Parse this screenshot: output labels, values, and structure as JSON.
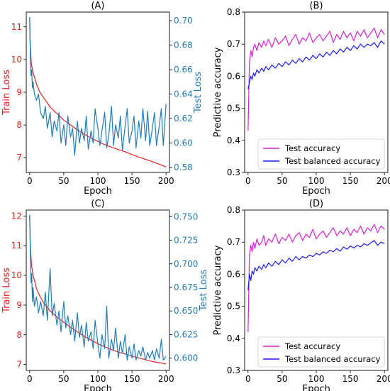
{
  "colors": {
    "train": "#e8211f",
    "test_loss": "#1f7db8",
    "accuracy": "#d81fd8",
    "balanced": "#1a1aff",
    "axis": "#000000"
  },
  "chart_data": [
    {
      "id": "A",
      "type": "line",
      "title": "(A)",
      "xlabel": "Epoch",
      "ylabel_left": "Train Loss",
      "ylabel_right": "Test Loss",
      "xlim": [
        -5,
        205
      ],
      "ylim_left": [
        6.55,
        11.45
      ],
      "ylim_right": [
        0.576,
        0.707
      ],
      "xticks": [
        0,
        50,
        100,
        150,
        200
      ],
      "yticks_left": [
        7,
        8,
        9,
        10,
        11
      ],
      "yticks_right": [
        0.58,
        0.6,
        0.62,
        0.64,
        0.66,
        0.68,
        0.7
      ],
      "right_tick_decimals": 2,
      "series": [
        {
          "axis": "left",
          "color_key": "train",
          "x": [
            0,
            1,
            2,
            3,
            5,
            8,
            10,
            15,
            20,
            25,
            30,
            40,
            50,
            60,
            70,
            80,
            90,
            100,
            110,
            120,
            130,
            140,
            150,
            160,
            170,
            180,
            190,
            200
          ],
          "values": [
            11.2,
            10.4,
            10.0,
            9.8,
            9.6,
            9.4,
            9.25,
            9.0,
            8.85,
            8.7,
            8.55,
            8.35,
            8.15,
            8.0,
            7.85,
            7.72,
            7.6,
            7.5,
            7.4,
            7.32,
            7.25,
            7.18,
            7.1,
            7.02,
            6.95,
            6.88,
            6.8,
            6.72
          ]
        },
        {
          "axis": "right",
          "color_key": "test_loss",
          "x": [
            0,
            1,
            2,
            3,
            4,
            5,
            7,
            10,
            13,
            16,
            20,
            23,
            26,
            30,
            33,
            36,
            40,
            43,
            46,
            50,
            53,
            56,
            60,
            63,
            66,
            70,
            73,
            76,
            80,
            83,
            86,
            90,
            93,
            96,
            100,
            103,
            106,
            110,
            113,
            116,
            120,
            123,
            126,
            130,
            133,
            136,
            140,
            143,
            146,
            150,
            153,
            156,
            160,
            163,
            166,
            170,
            173,
            176,
            180,
            183,
            186,
            190,
            193,
            196,
            200
          ],
          "values": [
            0.703,
            0.67,
            0.655,
            0.66,
            0.645,
            0.65,
            0.64,
            0.635,
            0.64,
            0.625,
            0.62,
            0.63,
            0.612,
            0.625,
            0.605,
            0.618,
            0.61,
            0.625,
            0.6,
            0.615,
            0.598,
            0.622,
            0.605,
            0.612,
            0.59,
            0.618,
            0.6,
            0.612,
            0.602,
            0.622,
            0.595,
            0.61,
            0.6,
            0.628,
            0.612,
            0.598,
            0.61,
            0.625,
            0.596,
            0.606,
            0.63,
            0.598,
            0.615,
            0.604,
            0.622,
            0.594,
            0.614,
            0.628,
            0.6,
            0.61,
            0.622,
            0.596,
            0.618,
            0.604,
            0.628,
            0.602,
            0.626,
            0.598,
            0.612,
            0.625,
            0.598,
            0.614,
            0.628,
            0.598,
            0.632
          ]
        }
      ]
    },
    {
      "id": "B",
      "type": "line",
      "title": "(B)",
      "xlabel": "Epoch",
      "ylabel_left": "Predictive accuracy",
      "xlim": [
        -5,
        205
      ],
      "ylim_left": [
        0.3,
        0.8
      ],
      "xticks": [
        0,
        50,
        100,
        150,
        200
      ],
      "yticks_left": [
        0.3,
        0.4,
        0.5,
        0.6,
        0.7,
        0.8
      ],
      "legend": {
        "position": "lower right",
        "entries": [
          "Test accuracy",
          "Test balanced accuracy"
        ]
      },
      "series": [
        {
          "axis": "left",
          "color_key": "accuracy",
          "name": "Test accuracy",
          "x": [
            0,
            2,
            4,
            6,
            8,
            10,
            13,
            16,
            20,
            23,
            26,
            30,
            35,
            40,
            45,
            50,
            55,
            60,
            65,
            70,
            75,
            80,
            85,
            90,
            95,
            100,
            105,
            110,
            115,
            120,
            125,
            130,
            135,
            140,
            145,
            150,
            155,
            160,
            165,
            170,
            175,
            180,
            185,
            190,
            195,
            200
          ],
          "values": [
            0.43,
            0.64,
            0.68,
            0.66,
            0.69,
            0.7,
            0.68,
            0.705,
            0.69,
            0.71,
            0.695,
            0.715,
            0.69,
            0.72,
            0.7,
            0.71,
            0.725,
            0.695,
            0.715,
            0.73,
            0.7,
            0.72,
            0.71,
            0.735,
            0.705,
            0.72,
            0.73,
            0.71,
            0.725,
            0.74,
            0.705,
            0.73,
            0.715,
            0.74,
            0.72,
            0.735,
            0.71,
            0.74,
            0.725,
            0.745,
            0.72,
            0.735,
            0.75,
            0.72,
            0.745,
            0.73
          ]
        },
        {
          "axis": "left",
          "color_key": "balanced",
          "name": "Test balanced accuracy",
          "x": [
            0,
            2,
            4,
            6,
            8,
            10,
            13,
            16,
            20,
            23,
            26,
            30,
            35,
            40,
            45,
            50,
            55,
            60,
            65,
            70,
            75,
            80,
            85,
            90,
            95,
            100,
            105,
            110,
            115,
            120,
            125,
            130,
            135,
            140,
            145,
            150,
            155,
            160,
            165,
            170,
            175,
            180,
            185,
            190,
            195,
            200
          ],
          "values": [
            0.56,
            0.58,
            0.6,
            0.59,
            0.61,
            0.6,
            0.62,
            0.61,
            0.625,
            0.615,
            0.63,
            0.62,
            0.635,
            0.625,
            0.64,
            0.63,
            0.645,
            0.635,
            0.65,
            0.64,
            0.655,
            0.645,
            0.66,
            0.65,
            0.665,
            0.655,
            0.67,
            0.66,
            0.675,
            0.665,
            0.68,
            0.67,
            0.685,
            0.675,
            0.69,
            0.68,
            0.695,
            0.685,
            0.7,
            0.69,
            0.7,
            0.695,
            0.705,
            0.69,
            0.71,
            0.7
          ]
        }
      ]
    },
    {
      "id": "C",
      "type": "line",
      "title": "(C)",
      "xlabel": "Epoch",
      "ylabel_left": "Train Loss",
      "ylabel_right": "Test Loss",
      "xlim": [
        -5,
        205
      ],
      "ylim_left": [
        6.8,
        12.2
      ],
      "ylim_right": [
        0.587,
        0.757
      ],
      "xticks": [
        0,
        50,
        100,
        150,
        200
      ],
      "yticks_left": [
        7,
        8,
        9,
        10,
        11,
        12
      ],
      "yticks_right": [
        0.6,
        0.625,
        0.65,
        0.675,
        0.7,
        0.725,
        0.75
      ],
      "right_tick_decimals": 3,
      "series": [
        {
          "axis": "left",
          "color_key": "train",
          "x": [
            0,
            1,
            2,
            3,
            5,
            8,
            10,
            15,
            20,
            25,
            30,
            40,
            50,
            60,
            70,
            80,
            90,
            100,
            110,
            120,
            130,
            140,
            150,
            160,
            170,
            180,
            190,
            200
          ],
          "values": [
            12.0,
            11.0,
            10.6,
            10.3,
            10.0,
            9.75,
            9.55,
            9.3,
            9.1,
            8.95,
            8.8,
            8.6,
            8.42,
            8.25,
            8.1,
            7.95,
            7.82,
            7.7,
            7.6,
            7.5,
            7.42,
            7.35,
            7.28,
            7.22,
            7.16,
            7.1,
            7.06,
            7.02
          ]
        },
        {
          "axis": "right",
          "color_key": "test_loss",
          "x": [
            0,
            1,
            2,
            3,
            4,
            5,
            7,
            10,
            13,
            16,
            20,
            23,
            26,
            30,
            33,
            36,
            40,
            43,
            46,
            50,
            53,
            56,
            60,
            63,
            66,
            70,
            73,
            76,
            80,
            83,
            86,
            90,
            93,
            96,
            100,
            103,
            106,
            110,
            113,
            116,
            120,
            123,
            126,
            130,
            133,
            136,
            140,
            143,
            146,
            150,
            153,
            156,
            160,
            163,
            166,
            170,
            173,
            176,
            180,
            183,
            186,
            190,
            193,
            196,
            200
          ],
          "values": [
            0.752,
            0.71,
            0.68,
            0.69,
            0.66,
            0.675,
            0.655,
            0.665,
            0.648,
            0.66,
            0.645,
            0.67,
            0.64,
            0.695,
            0.645,
            0.658,
            0.635,
            0.65,
            0.628,
            0.66,
            0.632,
            0.645,
            0.625,
            0.64,
            0.618,
            0.648,
            0.622,
            0.635,
            0.612,
            0.638,
            0.618,
            0.628,
            0.61,
            0.64,
            0.615,
            0.6,
            0.625,
            0.61,
            0.655,
            0.6,
            0.62,
            0.608,
            0.632,
            0.6,
            0.618,
            0.605,
            0.625,
            0.598,
            0.612,
            0.6,
            0.615,
            0.598,
            0.608,
            0.602,
            0.612,
            0.598,
            0.606,
            0.6,
            0.608,
            0.598,
            0.61,
            0.6,
            0.62,
            0.598,
            0.602
          ]
        }
      ]
    },
    {
      "id": "D",
      "type": "line",
      "title": "(D)",
      "xlabel": "Epoch",
      "ylabel_left": "Predictive accuracy",
      "xlim": [
        -5,
        205
      ],
      "ylim_left": [
        0.3,
        0.8
      ],
      "xticks": [
        0,
        50,
        100,
        150,
        200
      ],
      "yticks_left": [
        0.3,
        0.4,
        0.5,
        0.6,
        0.7,
        0.8
      ],
      "legend": {
        "position": "lower right",
        "entries": [
          "Test accuracy",
          "Test balanced accuracy"
        ]
      },
      "series": [
        {
          "axis": "left",
          "color_key": "accuracy",
          "name": "Test accuracy",
          "x": [
            0,
            2,
            4,
            6,
            8,
            10,
            13,
            16,
            20,
            23,
            26,
            30,
            35,
            40,
            45,
            50,
            55,
            60,
            65,
            70,
            75,
            80,
            85,
            90,
            95,
            100,
            105,
            110,
            115,
            120,
            125,
            130,
            135,
            140,
            145,
            150,
            155,
            160,
            165,
            170,
            175,
            180,
            185,
            190,
            195,
            200
          ],
          "values": [
            0.42,
            0.66,
            0.69,
            0.67,
            0.7,
            0.68,
            0.71,
            0.69,
            0.7,
            0.72,
            0.69,
            0.71,
            0.7,
            0.725,
            0.695,
            0.715,
            0.705,
            0.725,
            0.7,
            0.72,
            0.73,
            0.705,
            0.725,
            0.715,
            0.74,
            0.71,
            0.725,
            0.735,
            0.715,
            0.73,
            0.745,
            0.72,
            0.735,
            0.725,
            0.745,
            0.72,
            0.74,
            0.73,
            0.75,
            0.725,
            0.745,
            0.735,
            0.755,
            0.73,
            0.75,
            0.74
          ]
        },
        {
          "axis": "left",
          "color_key": "balanced",
          "name": "Test balanced accuracy",
          "x": [
            0,
            2,
            4,
            6,
            8,
            10,
            13,
            16,
            20,
            23,
            26,
            30,
            35,
            40,
            45,
            50,
            55,
            60,
            65,
            70,
            75,
            80,
            85,
            90,
            95,
            100,
            105,
            110,
            115,
            120,
            125,
            130,
            135,
            140,
            145,
            150,
            155,
            160,
            165,
            170,
            175,
            180,
            185,
            190,
            195,
            200
          ],
          "values": [
            0.55,
            0.6,
            0.58,
            0.61,
            0.6,
            0.62,
            0.61,
            0.625,
            0.615,
            0.63,
            0.62,
            0.635,
            0.625,
            0.64,
            0.63,
            0.645,
            0.635,
            0.65,
            0.64,
            0.655,
            0.645,
            0.655,
            0.65,
            0.66,
            0.655,
            0.665,
            0.66,
            0.67,
            0.665,
            0.675,
            0.67,
            0.68,
            0.672,
            0.685,
            0.678,
            0.688,
            0.682,
            0.69,
            0.685,
            0.695,
            0.69,
            0.698,
            0.705,
            0.69,
            0.7,
            0.695
          ]
        }
      ]
    }
  ]
}
